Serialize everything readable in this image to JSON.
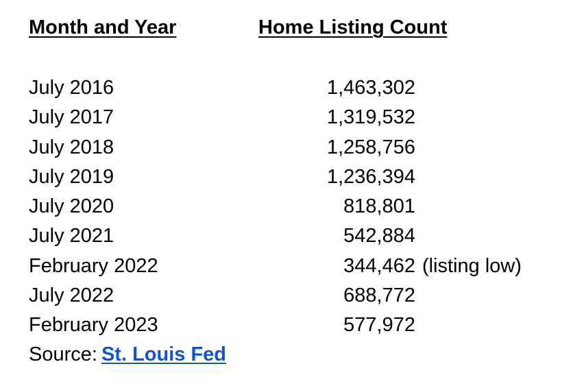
{
  "table": {
    "headers": {
      "month": "Month and Year",
      "count": "Home Listing Count"
    },
    "rows": [
      {
        "month": "July 2016",
        "count": "1,463,302",
        "note": ""
      },
      {
        "month": "July 2017",
        "count": "1,319,532",
        "note": ""
      },
      {
        "month": "July 2018",
        "count": "1,258,756",
        "note": ""
      },
      {
        "month": "July 2019",
        "count": "1,236,394",
        "note": ""
      },
      {
        "month": "July 2020",
        "count": "818,801",
        "note": ""
      },
      {
        "month": "July 2021",
        "count": "542,884",
        "note": ""
      },
      {
        "month": "February 2022",
        "count": "344,462",
        "note": "(listing low)"
      },
      {
        "month": "July 2022",
        "count": "688,772",
        "note": ""
      },
      {
        "month": "February 2023",
        "count": "577,972",
        "note": ""
      }
    ]
  },
  "source": {
    "label": "Source:",
    "link_text": "St. Louis Fed",
    "link_color": "#1155cc"
  }
}
